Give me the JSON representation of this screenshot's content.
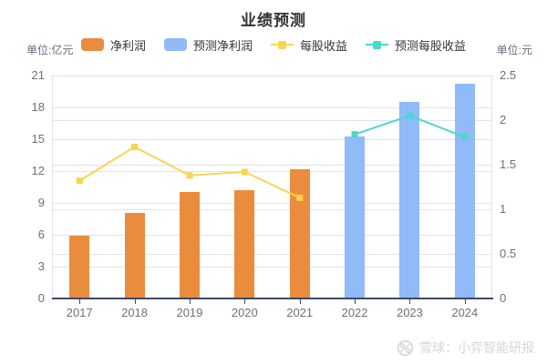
{
  "title": "业绩预测",
  "units": {
    "left": "单位:亿元",
    "right": "单位:元"
  },
  "legend": {
    "items": [
      {
        "label": "净利润",
        "swatch": "bar",
        "color": "#ea8c3e"
      },
      {
        "label": "预测净利润",
        "swatch": "bar",
        "color": "#90baf8"
      },
      {
        "label": "每股收益",
        "swatch": "line",
        "color": "#fbd44e"
      },
      {
        "label": "预测每股收益",
        "swatch": "line",
        "color": "#49d8ce"
      }
    ]
  },
  "watermark": {
    "text": "雪球：小弈智能研报"
  },
  "chart_data": {
    "type": "bar",
    "subtype": "dual-axis bar+line combo",
    "title": "业绩预测",
    "categories": [
      "2017",
      "2018",
      "2019",
      "2020",
      "2021",
      "2022",
      "2023",
      "2024"
    ],
    "series": [
      {
        "name": "净利润",
        "type": "bar",
        "axis": "left",
        "color": "#ea8c3e",
        "values": [
          5.9,
          8.1,
          10.0,
          10.2,
          12.2,
          null,
          null,
          null
        ]
      },
      {
        "name": "预测净利润",
        "type": "bar",
        "axis": "left",
        "color": "#90baf8",
        "values": [
          null,
          null,
          null,
          null,
          null,
          15.3,
          18.5,
          20.2
        ]
      },
      {
        "name": "每股收益",
        "type": "line",
        "axis": "right",
        "color": "#fbd44e",
        "values": [
          1.32,
          1.7,
          1.38,
          1.42,
          1.13,
          null,
          null,
          null
        ]
      },
      {
        "name": "预测每股收益",
        "type": "line",
        "axis": "right",
        "color": "#49d8ce",
        "values": [
          null,
          null,
          null,
          null,
          null,
          1.84,
          2.05,
          1.81
        ]
      }
    ],
    "left_axis": {
      "label": "单位:亿元",
      "min": 0,
      "max": 21,
      "ticks": [
        "0",
        "3",
        "6",
        "9",
        "12",
        "15",
        "18",
        "21"
      ]
    },
    "right_axis": {
      "label": "单位:元",
      "min": 0,
      "max": 2.5,
      "ticks": [
        "0",
        "0.5",
        "1",
        "1.5",
        "2",
        "2.5"
      ]
    },
    "grid": true,
    "legend_position": "top"
  }
}
